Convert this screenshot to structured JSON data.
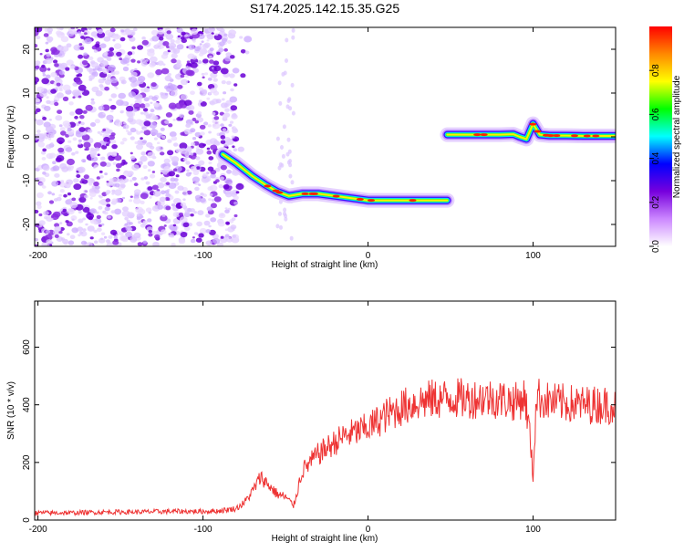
{
  "figure": {
    "title": "S174.2025.142.15.35.G25"
  },
  "chart_data": [
    {
      "type": "heatmap",
      "xlabel": "Height of straight line (km)",
      "ylabel": "Frequency (Hz)",
      "xlim": [
        -202,
        150
      ],
      "ylim": [
        -25,
        25
      ],
      "xticks": [
        -200,
        -100,
        0,
        100
      ],
      "yticks": [
        -20,
        -10,
        0,
        10,
        20
      ],
      "colorbar": {
        "label": "Normalized spectral amplitude",
        "range": [
          0,
          1
        ],
        "ticks": [
          0.0,
          0.2,
          0.4,
          0.6,
          0.8
        ],
        "colormap": [
          "#ffffff",
          "#cc88ff",
          "#7700dd",
          "#0000ff",
          "#00ffff",
          "#00ff00",
          "#ffff00",
          "#ff8800",
          "#ff0000"
        ]
      },
      "trace": {
        "segments": [
          {
            "x": [
              -88,
              -80,
              -70,
              -62,
              -55,
              -48,
              -40,
              -30,
              -20,
              -10,
              0,
              10,
              20,
              30,
              40,
              48
            ],
            "y": [
              -4,
              -6,
              -9,
              -11,
              -12.5,
              -13.5,
              -13,
              -13,
              -13.5,
              -14,
              -14.5,
              -14.5,
              -14.5,
              -14.5,
              -14.5,
              -14.5
            ]
          },
          {
            "x": [
              48,
              60,
              70,
              80,
              88,
              92,
              96,
              100,
              104,
              110,
              120,
              130,
              140,
              150
            ],
            "y": [
              0.5,
              0.5,
              0.5,
              0.5,
              0.6,
              0,
              -0.5,
              3,
              0.5,
              0.3,
              0.3,
              0.2,
              0.2,
              0.2
            ]
          }
        ]
      },
      "noise_region": {
        "x": [
          -202,
          -80
        ],
        "y": [
          -25,
          25
        ]
      }
    },
    {
      "type": "line",
      "xlabel": "Height of straight line (km)",
      "ylabel": "SNR (10 * v/v)",
      "xlim": [
        -202,
        150
      ],
      "ylim": [
        0,
        760
      ],
      "xticks": [
        -200,
        -100,
        0,
        100
      ],
      "yticks": [
        0,
        200,
        400,
        600
      ],
      "series": [
        {
          "color": "#ee3333",
          "x": [
            -202,
            -180,
            -160,
            -140,
            -120,
            -100,
            -90,
            -80,
            -75,
            -70,
            -65,
            -60,
            -55,
            -50,
            -45,
            -40,
            -35,
            -30,
            -25,
            -20,
            -15,
            -10,
            -5,
            0,
            5,
            10,
            15,
            20,
            25,
            30,
            35,
            40,
            45,
            50,
            60,
            70,
            80,
            90,
            95,
            98,
            100,
            102,
            105,
            110,
            120,
            130,
            140,
            150
          ],
          "y": [
            25,
            25,
            28,
            28,
            30,
            30,
            32,
            40,
            60,
            100,
            150,
            120,
            90,
            80,
            50,
            170,
            200,
            230,
            250,
            270,
            290,
            300,
            310,
            320,
            340,
            360,
            375,
            390,
            400,
            410,
            415,
            420,
            420,
            425,
            420,
            425,
            420,
            410,
            430,
            300,
            150,
            430,
            420,
            410,
            405,
            400,
            400,
            400
          ]
        }
      ]
    }
  ]
}
